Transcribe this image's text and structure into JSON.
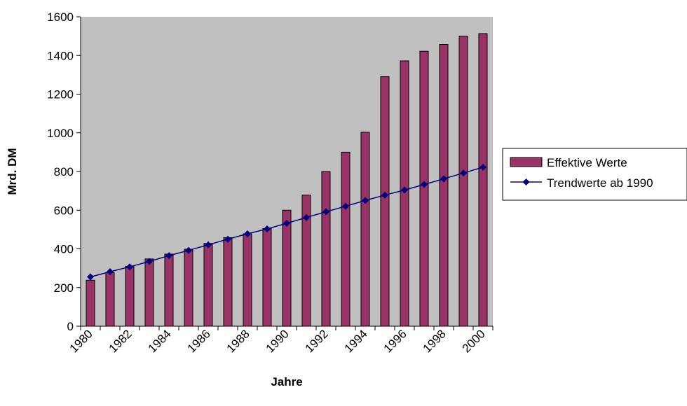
{
  "chart_data": {
    "type": "bar",
    "title": "",
    "xlabel": "Jahre",
    "ylabel": "Mrd. DM",
    "ylim": [
      0,
      1600
    ],
    "yticks": [
      0,
      200,
      400,
      600,
      800,
      1000,
      1200,
      1400,
      1600
    ],
    "categories": [
      "1980",
      "1981",
      "1982",
      "1983",
      "1984",
      "1985",
      "1986",
      "1987",
      "1988",
      "1989",
      "1990",
      "1991",
      "1992",
      "1993",
      "1994",
      "1995",
      "1996",
      "1997",
      "1998",
      "1999",
      "2000"
    ],
    "xtick_labels": [
      "1980",
      "",
      "1982",
      "",
      "1984",
      "",
      "1986",
      "",
      "1988",
      "",
      "1990",
      "",
      "1992",
      "",
      "1994",
      "",
      "1996",
      "",
      "1998",
      "",
      "2000"
    ],
    "series": [
      {
        "name": "Effektive Werte",
        "kind": "bar",
        "color": "#993366",
        "values": [
          238,
          277,
          310,
          348,
          373,
          398,
          428,
          458,
          478,
          505,
          600,
          678,
          800,
          900,
          1003,
          1290,
          1372,
          1422,
          1457,
          1500,
          1513
        ]
      },
      {
        "name": "Trendwerte ab 1990",
        "kind": "line",
        "marker": "diamond",
        "color": "#000080",
        "values": [
          255,
          282,
          307,
          335,
          365,
          392,
          421,
          450,
          478,
          503,
          532,
          562,
          592,
          620,
          650,
          678,
          704,
          733,
          762,
          792,
          822
        ]
      }
    ],
    "plot_background": "#c0c0c0",
    "grid": false,
    "legend": "right"
  }
}
